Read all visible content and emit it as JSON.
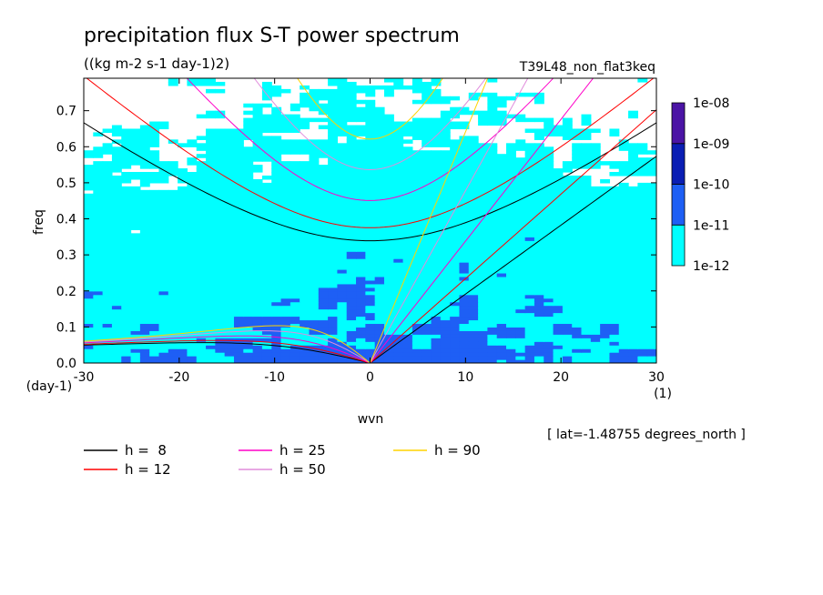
{
  "chart_data": {
    "type": "heatmap",
    "title": "precipitation flux S-T power spectrum",
    "subtitle": "((kg m-2 s-1 day-1)2)",
    "run_name": "T39L48_non_flat3keq",
    "xlabel": "wvn",
    "x_unit": "(1)",
    "ylabel": "freq",
    "y_unit": "(day-1)",
    "annotation": "[ lat=-1.48755 degrees_north ]",
    "xlim": [
      -30,
      30
    ],
    "ylim": [
      0,
      0.79
    ],
    "x_ticks": [
      "-30",
      "-20",
      "-10",
      "0",
      "10",
      "20",
      "30"
    ],
    "y_ticks": [
      "0.0",
      "0.1",
      "0.2",
      "0.3",
      "0.4",
      "0.5",
      "0.6",
      "0.7"
    ],
    "colorbar": {
      "levels": [
        "1e-12",
        "1e-11",
        "1e-10",
        "1e-09",
        "1e-08"
      ],
      "colors": [
        "#ffffff",
        "#00ffff",
        "#1e5ff5",
        "#0a1eb4",
        "#4b14a5"
      ]
    },
    "dispersion_curves": [
      {
        "name": "h =  8",
        "h": 8,
        "color": "#000000"
      },
      {
        "name": "h = 12",
        "h": 12,
        "color": "#ff0000"
      },
      {
        "name": "h = 25",
        "h": 25,
        "color": "#ff00c8"
      },
      {
        "name": "h = 50",
        "h": 50,
        "color": "#e08cdc"
      },
      {
        "name": "h = 90",
        "h": 90,
        "color": "#ffd400"
      }
    ]
  }
}
